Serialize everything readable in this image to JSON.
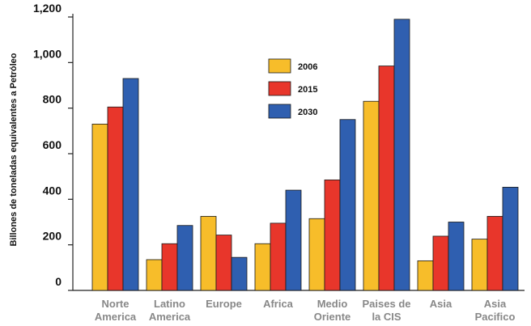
{
  "chart_data": {
    "type": "bar",
    "title": "",
    "xlabel": "",
    "ylabel": "Billones de toneladas equivalentes a Petróleo",
    "ylim": [
      0,
      1200
    ],
    "yticks": [
      "0",
      "200",
      "400",
      "600",
      "800",
      "1,000",
      "1,200"
    ],
    "ytick_values": [
      0,
      200,
      400,
      600,
      800,
      1000,
      1200
    ],
    "categories": [
      [
        "Norte",
        "America"
      ],
      [
        "Latino",
        "America"
      ],
      [
        "Europe"
      ],
      [
        "Africa"
      ],
      [
        "Medio",
        "Oriente"
      ],
      [
        "Paises de",
        "la CIS"
      ],
      [
        "Asia"
      ],
      [
        "Asia",
        "Pacifico"
      ]
    ],
    "series": [
      {
        "name": "2006",
        "color": "#f7bd2a",
        "values": [
          730,
          135,
          325,
          205,
          315,
          830,
          130,
          225
        ]
      },
      {
        "name": "2015",
        "color": "#e8362b",
        "values": [
          805,
          205,
          243,
          295,
          485,
          985,
          238,
          325
        ]
      },
      {
        "name": "2030",
        "color": "#2f5fb0",
        "values": [
          930,
          285,
          145,
          440,
          750,
          1190,
          300,
          453
        ]
      }
    ],
    "legend_position": "top-center",
    "grid": false
  }
}
